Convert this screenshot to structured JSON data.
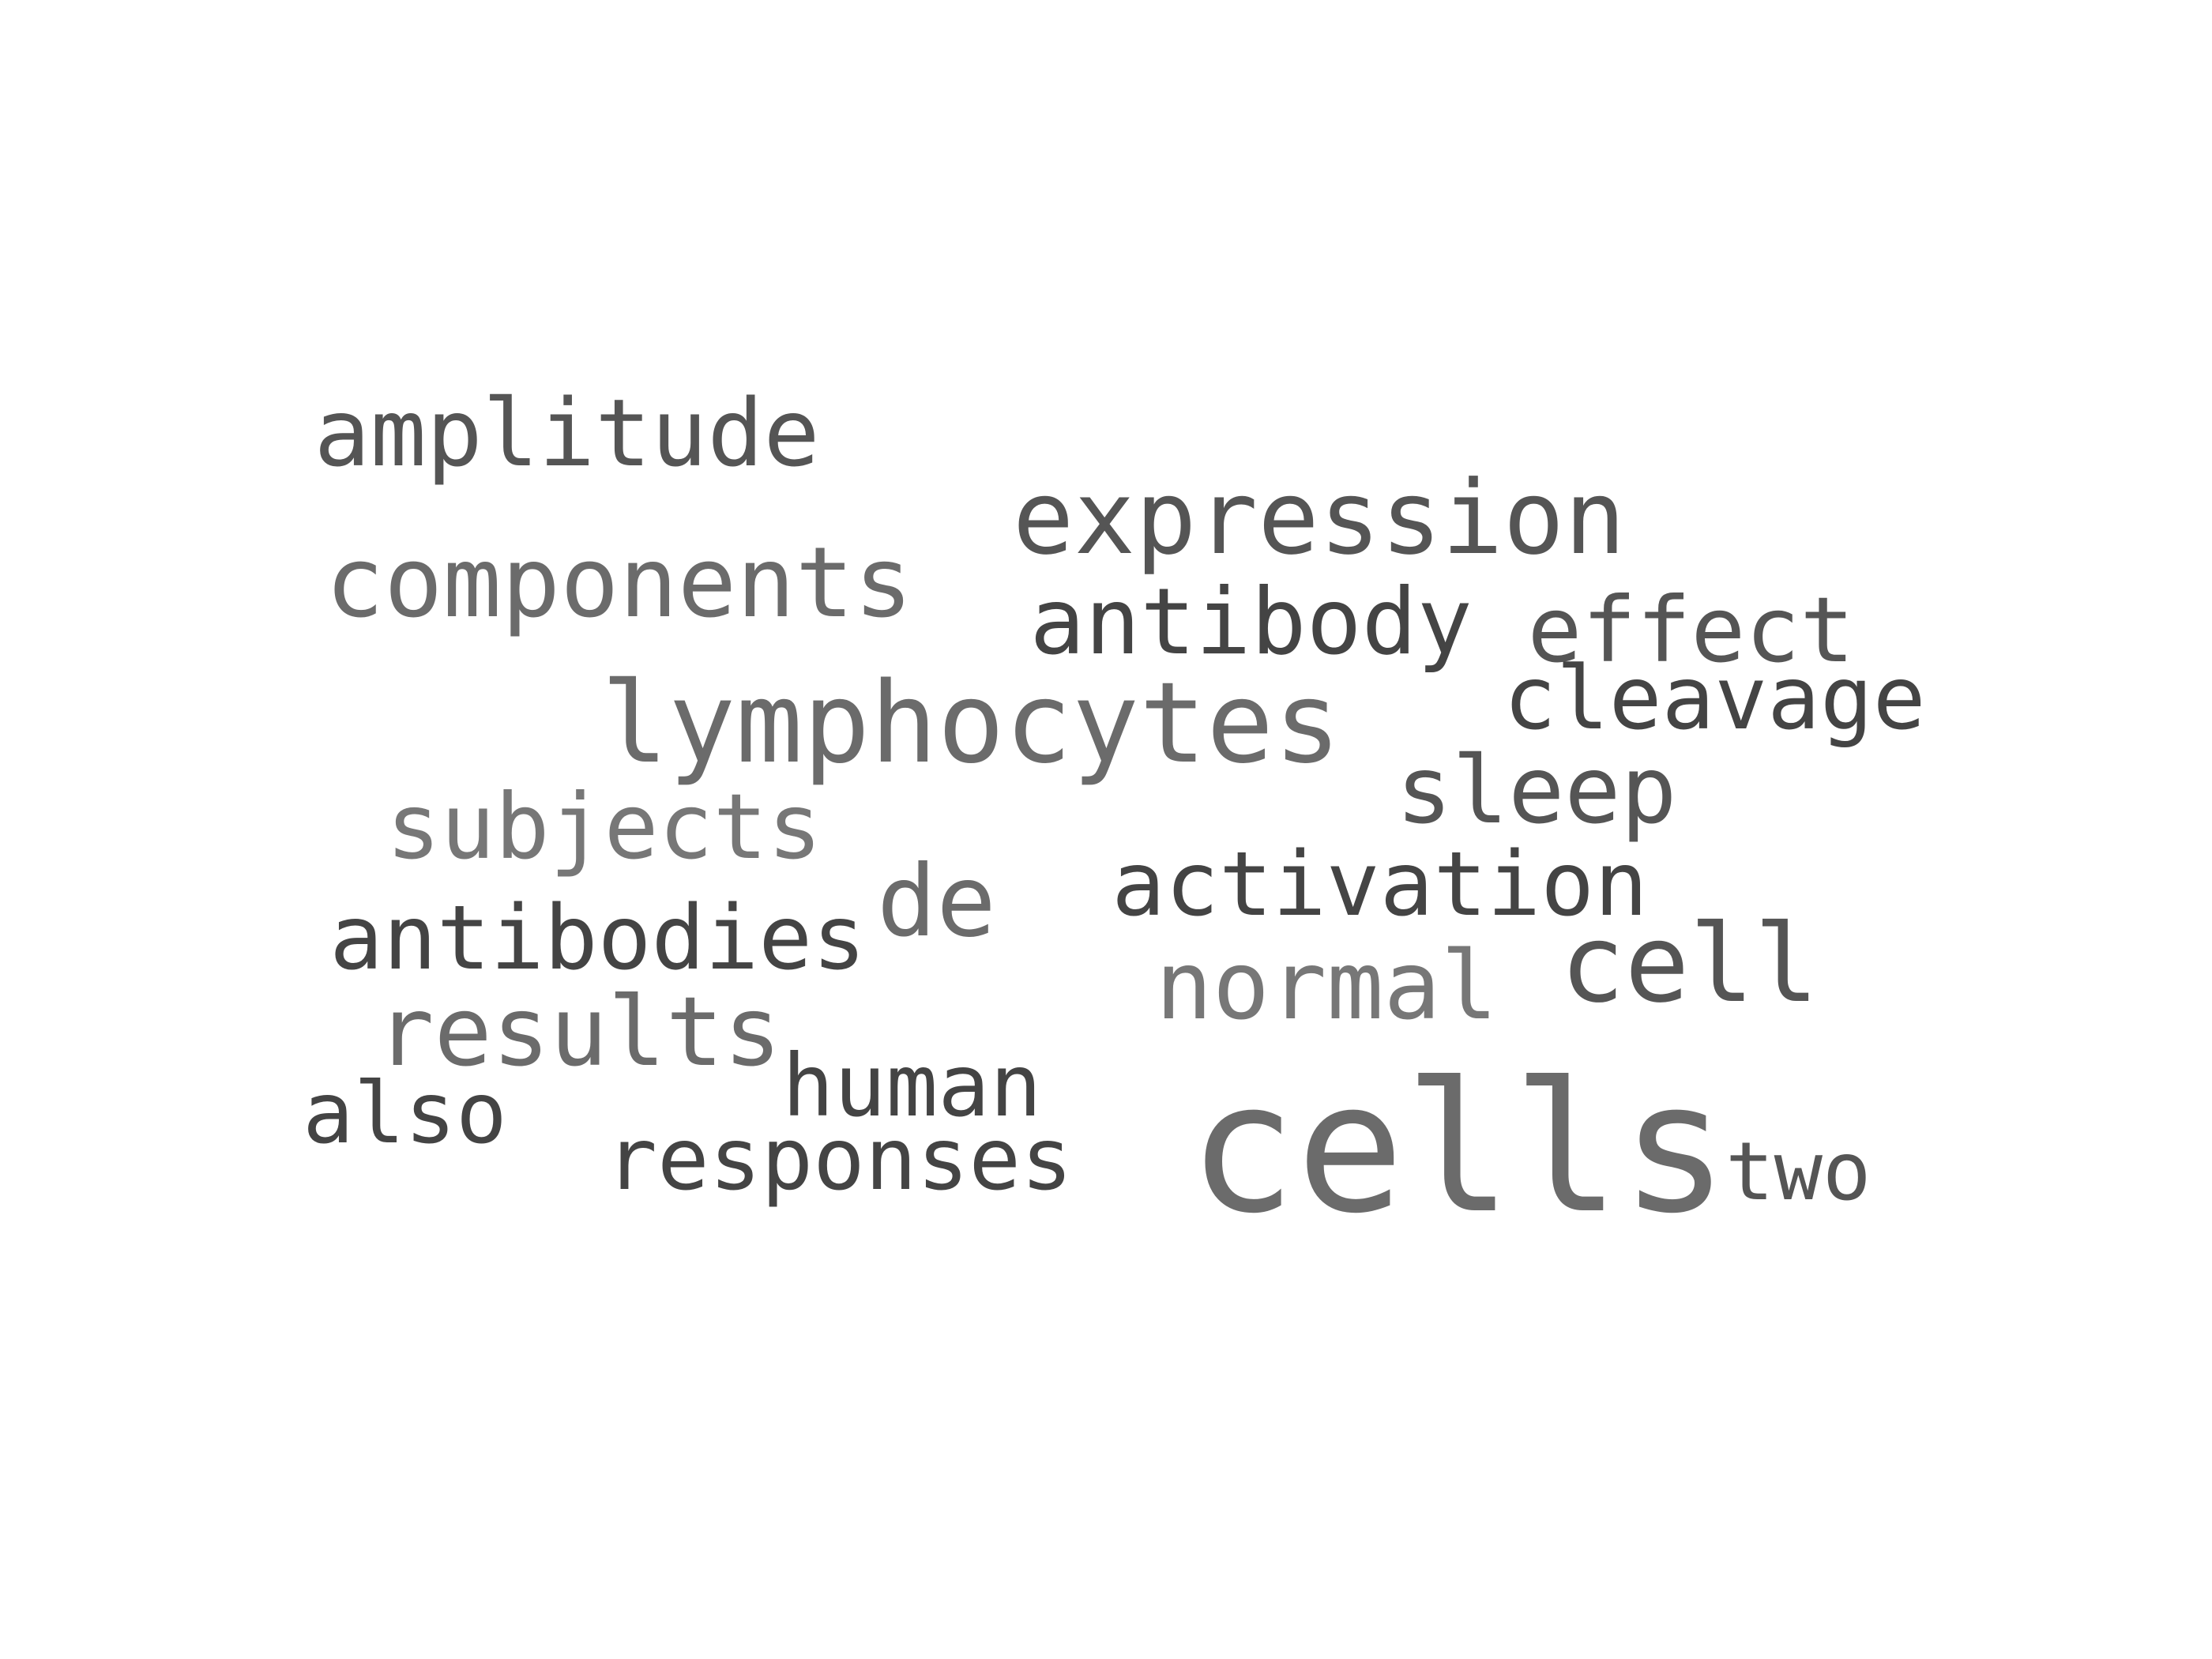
{
  "palette": {
    "background": "#ffffff",
    "dark": "#444444",
    "medium": "#555555",
    "light": "#6b6b6b",
    "lighter": "#777777"
  },
  "words": [
    {
      "text": "amplitude",
      "shade": "medium"
    },
    {
      "text": "expression",
      "shade": "medium"
    },
    {
      "text": "components",
      "shade": "light"
    },
    {
      "text": "antibody",
      "shade": "dark"
    },
    {
      "text": "effect",
      "shade": "medium"
    },
    {
      "text": "cleavage",
      "shade": "dark"
    },
    {
      "text": "lymphocytes",
      "shade": "light"
    },
    {
      "text": "sleep",
      "shade": "medium"
    },
    {
      "text": "subjects",
      "shade": "lighter"
    },
    {
      "text": "de",
      "shade": "light"
    },
    {
      "text": "activation",
      "shade": "dark"
    },
    {
      "text": "antibodies",
      "shade": "dark"
    },
    {
      "text": "normal",
      "shade": "lighter"
    },
    {
      "text": "cell",
      "shade": "medium"
    },
    {
      "text": "results",
      "shade": "light"
    },
    {
      "text": "human",
      "shade": "dark"
    },
    {
      "text": "also",
      "shade": "dark"
    },
    {
      "text": "responses",
      "shade": "dark"
    },
    {
      "text": "cells",
      "shade": "light"
    },
    {
      "text": "two",
      "shade": "medium"
    }
  ]
}
